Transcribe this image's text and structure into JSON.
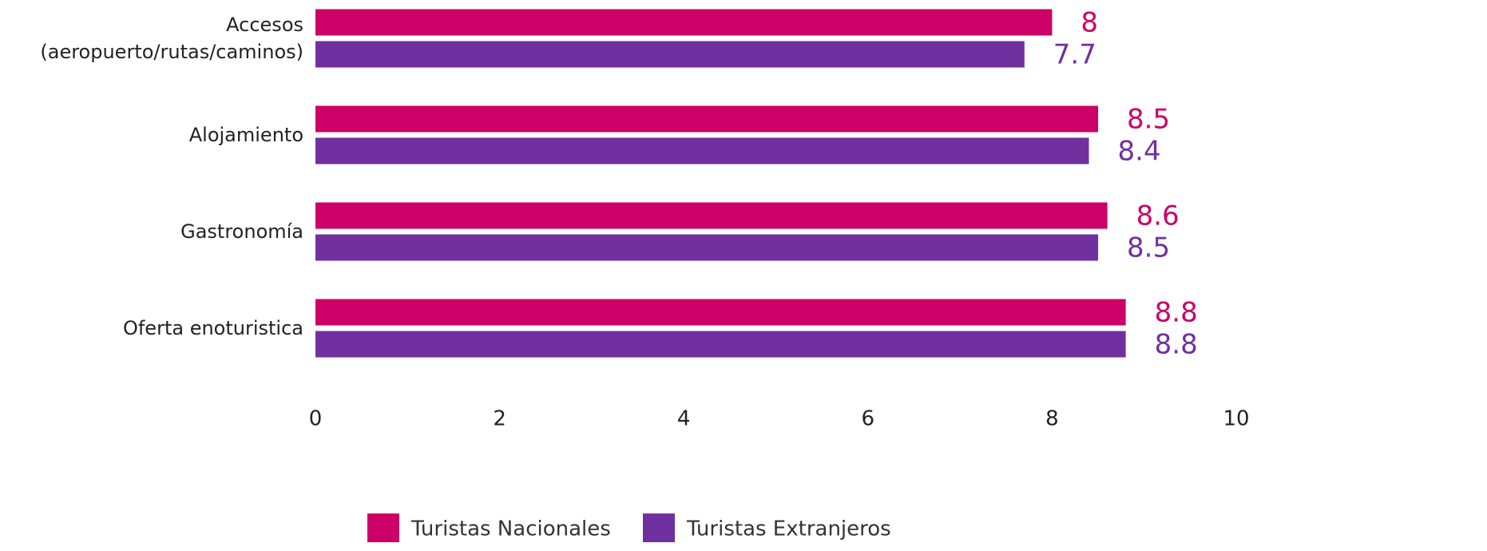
{
  "chart_data": {
    "type": "hbar",
    "categories": [
      "Accesos (aeropuerto/rutas/caminos)",
      "Alojamiento",
      "Gastronomía",
      "Oferta enoturistica"
    ],
    "series": [
      {
        "name": "Turistas Nacionales",
        "color": "#cc0066",
        "values": [
          8,
          8.5,
          8.6,
          8.8
        ]
      },
      {
        "name": "Turistas Extranjeros",
        "color": "#7030a0",
        "values": [
          7.7,
          8.4,
          8.5,
          8.8
        ]
      }
    ],
    "xlim": [
      0,
      10
    ],
    "xticks": [
      0,
      2,
      4,
      6,
      8,
      10
    ],
    "grid": false,
    "legend": "bottom"
  }
}
